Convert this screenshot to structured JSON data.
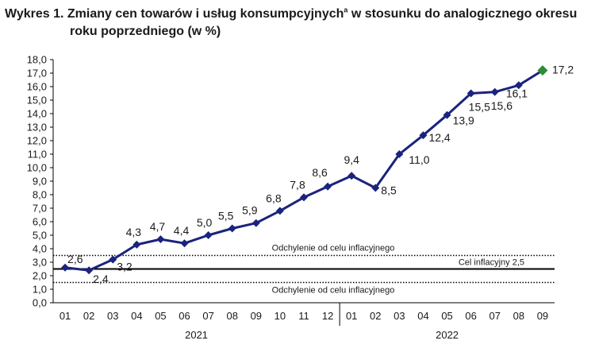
{
  "title": {
    "line1_prefix": "Wykres 1. Zmiany cen towarów i usług konsumpcyjnych",
    "superscript": "a",
    "line1_suffix": " w stosunku do analogicznego okresu",
    "line2": "roku poprzedniego (w %)"
  },
  "chart_data": {
    "type": "line",
    "categories": [
      "01",
      "02",
      "03",
      "04",
      "05",
      "06",
      "07",
      "08",
      "09",
      "10",
      "11",
      "12",
      "01",
      "02",
      "03",
      "04",
      "05",
      "06",
      "07",
      "08",
      "09"
    ],
    "years": [
      {
        "label": "2021",
        "start": 0,
        "end": 11
      },
      {
        "label": "2022",
        "start": 12,
        "end": 20
      }
    ],
    "series": [
      {
        "values": [
          2.6,
          2.4,
          3.2,
          4.3,
          4.7,
          4.4,
          5.0,
          5.5,
          5.9,
          6.8,
          7.8,
          8.6,
          9.4,
          8.5,
          11.0,
          12.4,
          13.9,
          15.5,
          15.6,
          16.1,
          17.2
        ],
        "labels": [
          "2,6",
          "2,4",
          "3,2",
          "4,3",
          "4,7",
          "4,4",
          "5,0",
          "5,5",
          "5,9",
          "6,8",
          "7,8",
          "8,6",
          "9,4",
          "8,5",
          "11,0",
          "12,4",
          "13,9",
          "15,5",
          "15,6",
          "16,1",
          "17,2"
        ],
        "color": "#1a237e",
        "last_marker_color": "#2e8b3a"
      }
    ],
    "yticks": [
      "0,0",
      "1,0",
      "2,0",
      "3,0",
      "4,0",
      "5,0",
      "6,0",
      "7,0",
      "8,0",
      "9,0",
      "10,0",
      "11,0",
      "12,0",
      "13,0",
      "14,0",
      "15,0",
      "16,0",
      "17,0",
      "18,0"
    ],
    "ylim": [
      0,
      18
    ],
    "reference_lines": [
      {
        "value": 3.5,
        "style": "dotted",
        "label": "Odchylenie od celu inflacyjnego"
      },
      {
        "value": 2.5,
        "style": "solid",
        "label": "Cel inflacyjny 2,5"
      },
      {
        "value": 1.5,
        "style": "dotted",
        "label": "Odchylenie od celu inflacyjnego"
      }
    ]
  }
}
